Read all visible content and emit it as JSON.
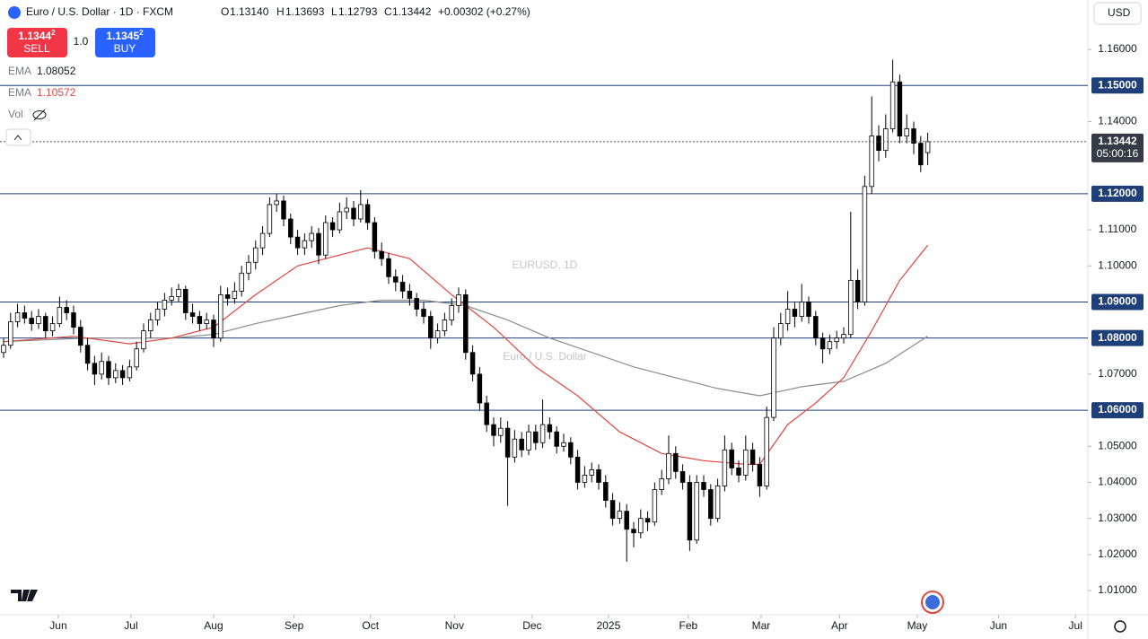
{
  "header": {
    "title": "Euro / U.S. Dollar · 1D · FXCM",
    "open_label": "O",
    "open": "1.13140",
    "high_label": "H",
    "high": "1.13693",
    "low_label": "L",
    "low": "1.12793",
    "close_label": "C",
    "close": "1.13442",
    "change": "+0.00302 (+0.27%)"
  },
  "trade": {
    "sell_price": "1.1344",
    "sell_pip": "2",
    "sell_label": "SELL",
    "spread": "1.0",
    "buy_price": "1.1345",
    "buy_pip": "2",
    "buy_label": "BUY"
  },
  "volume_label": "Vol",
  "currency": "USD",
  "chart_data": {
    "type": "candlestick",
    "watermark": "EURUSD, 1D",
    "watermark_subtitle": "Euro / U.S. Dollar",
    "up_color": "#ffffff",
    "down_color": "#000000",
    "wick_color": "#000000",
    "xlim": [
      -0.51,
      154.87
    ],
    "xticks": [
      {
        "value": 7.82,
        "label": "Jun"
      },
      {
        "value": 18.2,
        "label": "Jul"
      },
      {
        "value": 30.0,
        "label": "Aug"
      },
      {
        "value": 41.5,
        "label": "Sep"
      },
      {
        "value": 52.4,
        "label": "Oct"
      },
      {
        "value": 64.4,
        "label": "Nov"
      },
      {
        "value": 75.5,
        "label": "Dec"
      },
      {
        "value": 86.4,
        "label": "2025"
      },
      {
        "value": 97.8,
        "label": "Feb"
      },
      {
        "value": 108.2,
        "label": "Mar"
      },
      {
        "value": 119.4,
        "label": "Apr"
      },
      {
        "value": 130.5,
        "label": "May"
      },
      {
        "value": 142.1,
        "label": "Jun"
      },
      {
        "value": 153.1,
        "label": "Jul"
      }
    ],
    "ylim": [
      1.0033,
      1.1737
    ],
    "yticks": [
      {
        "value": 1.16,
        "label": "1.16000"
      },
      {
        "value": 1.14,
        "label": "1.14000"
      },
      {
        "value": 1.11,
        "label": "1.11000"
      },
      {
        "value": 1.1,
        "label": "1.10000"
      },
      {
        "value": 1.07,
        "label": "1.07000"
      },
      {
        "value": 1.05,
        "label": "1.05000"
      },
      {
        "value": 1.04,
        "label": "1.04000"
      },
      {
        "value": 1.03,
        "label": "1.03000"
      },
      {
        "value": 1.02,
        "label": "1.02000"
      },
      {
        "value": 1.01,
        "label": "1.01000"
      }
    ],
    "levels": [
      {
        "value": 1.15,
        "label": "1.15000"
      },
      {
        "value": 1.12,
        "label": "1.12000"
      },
      {
        "value": 1.09,
        "label": "1.09000"
      },
      {
        "value": 1.08,
        "label": "1.08000"
      },
      {
        "value": 1.06,
        "label": "1.06000"
      }
    ],
    "level_color": "#1f3f78",
    "last_price": {
      "value": 1.13442,
      "label": "1.13442",
      "countdown": "05:00:16"
    },
    "lines": [
      {
        "name": "EMA",
        "value_label": "1.08052",
        "color": "#8c8c8c",
        "x": [
          0,
          12,
          24,
          30,
          36,
          42,
          48,
          54,
          60,
          66,
          72,
          78,
          84,
          90,
          96,
          102,
          108,
          114,
          120,
          126,
          132
        ],
        "values": [
          1.079,
          1.08,
          1.08,
          1.081,
          1.084,
          1.0865,
          1.089,
          1.0905,
          1.0905,
          1.089,
          1.085,
          1.08,
          1.076,
          1.072,
          1.069,
          1.066,
          1.064,
          1.0665,
          1.068,
          1.073,
          1.08052
        ]
      },
      {
        "name": "EMA",
        "value_label": "1.10572",
        "color": "#e0463f",
        "x": [
          0,
          10,
          18,
          24,
          30,
          36,
          42,
          48,
          52,
          58,
          64,
          70,
          76,
          82,
          88,
          94,
          100,
          106,
          108,
          112,
          116,
          120,
          124,
          128,
          132
        ],
        "values": [
          1.079,
          1.0805,
          1.0784,
          1.08,
          1.083,
          1.092,
          1.1,
          1.103,
          1.105,
          1.102,
          1.092,
          1.083,
          1.072,
          1.064,
          1.054,
          1.048,
          1.046,
          1.045,
          1.045,
          1.056,
          1.062,
          1.069,
          1.082,
          1.096,
          1.10572
        ]
      }
    ],
    "ohlc": [
      [
        1.076,
        1.08,
        1.0745,
        1.078
      ],
      [
        1.078,
        1.087,
        1.077,
        1.0845
      ],
      [
        1.0845,
        1.0895,
        1.083,
        1.087
      ],
      [
        1.087,
        1.089,
        1.084,
        1.0855
      ],
      [
        1.0855,
        1.0875,
        1.082,
        1.084
      ],
      [
        1.084,
        1.088,
        1.0825,
        1.086
      ],
      [
        1.086,
        1.087,
        1.08,
        1.082
      ],
      [
        1.082,
        1.086,
        1.0805,
        1.084
      ],
      [
        1.084,
        1.0915,
        1.083,
        1.0885
      ],
      [
        1.0885,
        1.0905,
        1.085,
        1.087
      ],
      [
        1.087,
        1.089,
        1.081,
        1.083
      ],
      [
        1.083,
        1.085,
        1.076,
        1.078
      ],
      [
        1.078,
        1.08,
        1.071,
        1.073
      ],
      [
        1.073,
        1.075,
        1.067,
        1.07
      ],
      [
        1.07,
        1.076,
        1.0685,
        1.0735
      ],
      [
        1.0735,
        1.075,
        1.067,
        1.069
      ],
      [
        1.069,
        1.073,
        1.0675,
        1.071
      ],
      [
        1.071,
        1.0725,
        1.067,
        1.069
      ],
      [
        1.069,
        1.074,
        1.068,
        1.072
      ],
      [
        1.072,
        1.079,
        1.071,
        1.077
      ],
      [
        1.077,
        1.084,
        1.076,
        1.082
      ],
      [
        1.082,
        1.087,
        1.08,
        1.085
      ],
      [
        1.085,
        1.09,
        1.0835,
        1.088
      ],
      [
        1.088,
        1.0925,
        1.086,
        1.0905
      ],
      [
        1.0905,
        1.094,
        1.089,
        1.0915
      ],
      [
        1.0915,
        1.095,
        1.09,
        1.0935
      ],
      [
        1.0935,
        1.0945,
        1.085,
        1.087
      ],
      [
        1.087,
        1.0895,
        1.084,
        1.086
      ],
      [
        1.086,
        1.0875,
        1.082,
        1.084
      ],
      [
        1.084,
        1.087,
        1.0825,
        1.085
      ],
      [
        1.085,
        1.0865,
        1.0775,
        1.08
      ],
      [
        1.08,
        1.0945,
        1.079,
        1.092
      ],
      [
        1.092,
        1.094,
        1.089,
        1.091
      ],
      [
        1.091,
        1.0955,
        1.0895,
        1.093
      ],
      [
        1.093,
        1.1,
        1.0915,
        1.098
      ],
      [
        1.098,
        1.103,
        1.096,
        1.101
      ],
      [
        1.101,
        1.107,
        1.099,
        1.105
      ],
      [
        1.105,
        1.111,
        1.103,
        1.109
      ],
      [
        1.109,
        1.119,
        1.108,
        1.117
      ],
      [
        1.117,
        1.12,
        1.115,
        1.118
      ],
      [
        1.118,
        1.1195,
        1.111,
        1.113
      ],
      [
        1.113,
        1.1145,
        1.106,
        1.108
      ],
      [
        1.108,
        1.11,
        1.103,
        1.105
      ],
      [
        1.105,
        1.109,
        1.103,
        1.107
      ],
      [
        1.107,
        1.111,
        1.105,
        1.109
      ],
      [
        1.109,
        1.1105,
        1.1005,
        1.103
      ],
      [
        1.103,
        1.114,
        1.102,
        1.112
      ],
      [
        1.112,
        1.1135,
        1.108,
        1.11
      ],
      [
        1.11,
        1.1175,
        1.109,
        1.115
      ],
      [
        1.115,
        1.119,
        1.113,
        1.116
      ],
      [
        1.116,
        1.118,
        1.111,
        1.113
      ],
      [
        1.113,
        1.121,
        1.112,
        1.117
      ],
      [
        1.117,
        1.1185,
        1.11,
        1.112
      ],
      [
        1.112,
        1.1135,
        1.102,
        1.104
      ],
      [
        1.104,
        1.1065,
        1.1,
        1.102
      ],
      [
        1.102,
        1.1035,
        1.095,
        1.097
      ],
      [
        1.097,
        1.099,
        1.093,
        1.0955
      ],
      [
        1.0955,
        1.0975,
        1.091,
        1.093
      ],
      [
        1.093,
        1.095,
        1.089,
        1.091
      ],
      [
        1.091,
        1.0925,
        1.086,
        1.088
      ],
      [
        1.088,
        1.09,
        1.084,
        1.086
      ],
      [
        1.086,
        1.0875,
        1.077,
        1.08
      ],
      [
        1.08,
        1.084,
        1.0785,
        1.082
      ],
      [
        1.082,
        1.087,
        1.0805,
        1.085
      ],
      [
        1.085,
        1.091,
        1.0835,
        1.089
      ],
      [
        1.089,
        1.094,
        1.087,
        1.092
      ],
      [
        1.092,
        1.0935,
        1.074,
        1.076
      ],
      [
        1.076,
        1.078,
        1.068,
        1.07
      ],
      [
        1.07,
        1.072,
        1.06,
        1.062
      ],
      [
        1.062,
        1.064,
        1.054,
        1.056
      ],
      [
        1.056,
        1.058,
        1.05,
        1.053
      ],
      [
        1.053,
        1.058,
        1.051,
        1.055
      ],
      [
        1.055,
        1.057,
        1.0335,
        1.047
      ],
      [
        1.047,
        1.0545,
        1.0455,
        1.052
      ],
      [
        1.052,
        1.054,
        1.047,
        1.049
      ],
      [
        1.049,
        1.056,
        1.0475,
        1.054
      ],
      [
        1.054,
        1.056,
        1.049,
        1.051
      ],
      [
        1.051,
        1.063,
        1.0495,
        1.056
      ],
      [
        1.056,
        1.058,
        1.052,
        1.054
      ],
      [
        1.054,
        1.0555,
        1.048,
        1.05
      ],
      [
        1.05,
        1.0535,
        1.0485,
        1.051
      ],
      [
        1.051,
        1.0525,
        1.045,
        1.047
      ],
      [
        1.047,
        1.049,
        1.038,
        1.04
      ],
      [
        1.04,
        1.0445,
        1.0385,
        1.042
      ],
      [
        1.042,
        1.0455,
        1.04,
        1.0435
      ],
      [
        1.0435,
        1.045,
        1.038,
        1.04
      ],
      [
        1.04,
        1.042,
        1.033,
        1.035
      ],
      [
        1.035,
        1.037,
        1.028,
        1.03
      ],
      [
        1.03,
        1.0345,
        1.0285,
        1.032
      ],
      [
        1.032,
        1.034,
        1.018,
        1.027
      ],
      [
        1.027,
        1.029,
        1.022,
        1.026
      ],
      [
        1.026,
        1.0325,
        1.0245,
        1.03
      ],
      [
        1.03,
        1.032,
        1.0265,
        1.029
      ],
      [
        1.029,
        1.04,
        1.028,
        1.038
      ],
      [
        1.038,
        1.0435,
        1.0365,
        1.041
      ],
      [
        1.041,
        1.053,
        1.0395,
        1.048
      ],
      [
        1.048,
        1.05,
        1.041,
        1.043
      ],
      [
        1.043,
        1.045,
        1.038,
        1.04
      ],
      [
        1.04,
        1.042,
        1.021,
        1.024
      ],
      [
        1.024,
        1.042,
        1.023,
        1.04
      ],
      [
        1.04,
        1.042,
        1.036,
        1.038
      ],
      [
        1.038,
        1.0395,
        1.028,
        1.03
      ],
      [
        1.03,
        1.041,
        1.029,
        1.039
      ],
      [
        1.039,
        1.053,
        1.0375,
        1.049
      ],
      [
        1.049,
        1.051,
        1.042,
        1.044
      ],
      [
        1.044,
        1.046,
        1.04,
        1.042
      ],
      [
        1.042,
        1.053,
        1.0405,
        1.049
      ],
      [
        1.049,
        1.051,
        1.043,
        1.045
      ],
      [
        1.045,
        1.047,
        1.036,
        1.039
      ],
      [
        1.039,
        1.061,
        1.038,
        1.058
      ],
      [
        1.058,
        1.083,
        1.057,
        1.08
      ],
      [
        1.08,
        1.087,
        1.078,
        1.084
      ],
      [
        1.084,
        1.093,
        1.082,
        1.088
      ],
      [
        1.088,
        1.09,
        1.083,
        1.086
      ],
      [
        1.086,
        1.095,
        1.0845,
        1.09
      ],
      [
        1.09,
        1.0915,
        1.084,
        1.086
      ],
      [
        1.086,
        1.0875,
        1.078,
        1.08
      ],
      [
        1.08,
        1.0815,
        1.073,
        1.077
      ],
      [
        1.077,
        1.081,
        1.0755,
        1.079
      ],
      [
        1.079,
        1.082,
        1.077,
        1.08
      ],
      [
        1.08,
        1.083,
        1.0785,
        1.081
      ],
      [
        1.081,
        1.115,
        1.08,
        1.096
      ],
      [
        1.096,
        1.099,
        1.088,
        1.09
      ],
      [
        1.09,
        1.125,
        1.089,
        1.122
      ],
      [
        1.122,
        1.147,
        1.12,
        1.136
      ],
      [
        1.136,
        1.139,
        1.129,
        1.132
      ],
      [
        1.132,
        1.142,
        1.13,
        1.138
      ],
      [
        1.138,
        1.1572,
        1.137,
        1.151
      ],
      [
        1.151,
        1.153,
        1.134,
        1.136
      ],
      [
        1.136,
        1.142,
        1.134,
        1.138
      ],
      [
        1.138,
        1.14,
        1.131,
        1.134
      ],
      [
        1.134,
        1.136,
        1.126,
        1.128
      ],
      [
        1.1314,
        1.13693,
        1.12793,
        1.13442
      ]
    ]
  }
}
